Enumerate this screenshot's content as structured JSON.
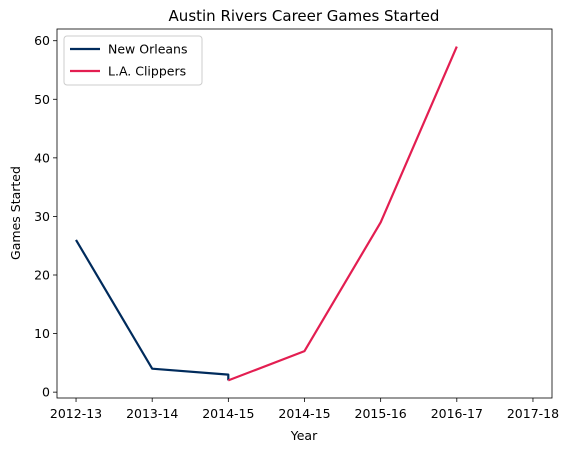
{
  "chart_data": {
    "type": "line",
    "title": "Austin Rivers Career Games Started",
    "xlabel": "Year",
    "ylabel": "Games Started",
    "x_tick_labels": [
      "2012-13",
      "2013-14",
      "2014-15",
      "2014-15",
      "2015-16",
      "2016-17",
      "2017-18"
    ],
    "xlim": [
      -0.25,
      6.25
    ],
    "ylim": [
      -1,
      62
    ],
    "y_ticks": [
      0,
      10,
      20,
      30,
      40,
      50,
      60
    ],
    "grid": false,
    "legend_position": "top-left",
    "series": [
      {
        "name": "New Orleans",
        "color": "#002B5C",
        "points": [
          [
            0,
            26
          ],
          [
            1,
            4
          ],
          [
            2,
            3
          ],
          [
            2,
            2
          ]
        ]
      },
      {
        "name": "L.A. Clippers",
        "color": "#E31E51",
        "points": [
          [
            2,
            2
          ],
          [
            3,
            7
          ],
          [
            4,
            29
          ],
          [
            5,
            59
          ]
        ]
      }
    ]
  }
}
